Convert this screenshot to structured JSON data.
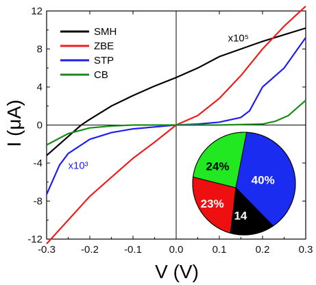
{
  "chart_data": {
    "type": "line",
    "xlabel": "V (V)",
    "ylabel": "I (μA)",
    "xlim": [
      -0.3,
      0.3
    ],
    "ylim": [
      -12,
      12
    ],
    "xticks": [
      "-0.3",
      "-0.2",
      "-0.1",
      "0.0",
      "0.1",
      "0.2",
      "0.3"
    ],
    "yticks": [
      "-12",
      "-8",
      "-4",
      "0",
      "4",
      "8",
      "12"
    ],
    "legend_position": "top-left",
    "series": [
      {
        "name": "SMH",
        "color": "#000000",
        "x": [
          -0.3,
          -0.25,
          -0.22,
          -0.2,
          -0.15,
          -0.1,
          -0.05,
          0.0,
          0.05,
          0.1,
          0.15,
          0.2,
          0.25,
          0.3
        ],
        "y": [
          -3.2,
          -1.2,
          0.0,
          0.6,
          2.0,
          3.1,
          4.1,
          5.0,
          6.0,
          7.2,
          8.0,
          8.8,
          9.5,
          10.2
        ]
      },
      {
        "name": "ZBE",
        "color": "#ee1c1c",
        "x": [
          -0.3,
          -0.25,
          -0.2,
          -0.15,
          -0.1,
          -0.05,
          0.0,
          0.05,
          0.1,
          0.15,
          0.2,
          0.25,
          0.3
        ],
        "y": [
          -12.5,
          -10.0,
          -7.5,
          -5.5,
          -3.5,
          -1.8,
          0.0,
          1.0,
          2.8,
          5.2,
          8.0,
          10.4,
          12.5
        ]
      },
      {
        "name": "STP",
        "color": "#1e1ef0",
        "x": [
          -0.3,
          -0.27,
          -0.25,
          -0.2,
          -0.15,
          -0.1,
          -0.05,
          0.0,
          0.05,
          0.1,
          0.15,
          0.17,
          0.2,
          0.25,
          0.3
        ],
        "y": [
          -7.3,
          -4.2,
          -3.0,
          -1.5,
          -0.8,
          -0.4,
          -0.2,
          0.0,
          0.1,
          0.3,
          0.8,
          1.5,
          4.0,
          6.0,
          9.2
        ]
      },
      {
        "name": "CB",
        "color": "#1a8a1a",
        "x": [
          -0.3,
          -0.25,
          -0.2,
          -0.15,
          -0.1,
          -0.05,
          0.0,
          0.1,
          0.2,
          0.23,
          0.26,
          0.3
        ],
        "y": [
          -2.1,
          -0.9,
          -0.3,
          -0.1,
          0.0,
          0.0,
          0.0,
          0.0,
          0.1,
          0.4,
          1.0,
          2.6
        ]
      }
    ],
    "annotations": [
      {
        "text": "x10⁵",
        "color": "#000000",
        "x": 0.12,
        "y": 8.8
      },
      {
        "text": "x10³",
        "color": "#1e1ef0",
        "x": -0.25,
        "y": -4.6
      }
    ],
    "inset_pie": {
      "slices": [
        {
          "label": "40%",
          "value": 40,
          "color": "#1a2cf0",
          "text_color": "#ffffff"
        },
        {
          "label": "14",
          "value": 14,
          "color": "#000000",
          "text_color": "#ffffff"
        },
        {
          "label": "23%",
          "value": 23,
          "color": "#ee1010",
          "text_color": "#ffffff"
        },
        {
          "label": "24%",
          "value": 24,
          "color": "#22e822",
          "text_color": "#000000"
        }
      ]
    }
  }
}
